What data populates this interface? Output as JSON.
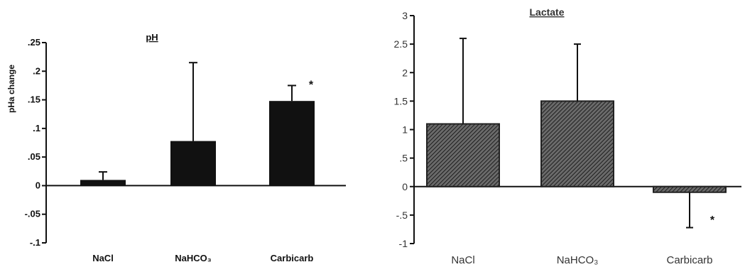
{
  "chart_data": [
    {
      "type": "bar",
      "title": "pH",
      "ylabel": "pHa change",
      "xlabel": "",
      "categories": [
        "NaCl",
        "NaHCO3",
        "Carbicarb"
      ],
      "category_labels": [
        "NaCl",
        "NaHCO₃",
        "Carbicarb"
      ],
      "values": [
        0.01,
        0.078,
        0.148
      ],
      "error_upper": [
        0.024,
        0.215,
        0.175
      ],
      "significance": [
        "",
        "",
        "*"
      ],
      "ylim": [
        -0.1,
        0.25
      ],
      "yticks": [
        -0.1,
        -0.05,
        0,
        0.05,
        0.1,
        0.15,
        0.2,
        0.25
      ],
      "ytick_labels": [
        "-.1",
        "-.05",
        "0",
        ".05",
        ".1",
        ".15",
        ".2",
        ".25"
      ],
      "bar_color": "#111111",
      "grid": false
    },
    {
      "type": "bar",
      "title": "Lactate",
      "ylabel": "",
      "xlabel": "",
      "categories": [
        "NaCl",
        "NaHCO3",
        "Carbicarb"
      ],
      "category_labels": [
        "NaCl",
        "NaHCO₃",
        "Carbicarb"
      ],
      "values": [
        1.1,
        1.5,
        -0.1
      ],
      "error_ends": [
        2.6,
        2.5,
        -0.72
      ],
      "significance": [
        "",
        "",
        "*"
      ],
      "ylim": [
        -1,
        3
      ],
      "yticks": [
        -1,
        -0.5,
        0,
        0.5,
        1,
        1.5,
        2,
        2.5,
        3
      ],
      "ytick_labels": [
        "-1",
        "-.5",
        "0",
        ".5",
        "1",
        "1.5",
        "2",
        "2.5",
        "3"
      ],
      "bar_fill": "hatched",
      "bar_color": "#333333",
      "grid": false
    }
  ]
}
